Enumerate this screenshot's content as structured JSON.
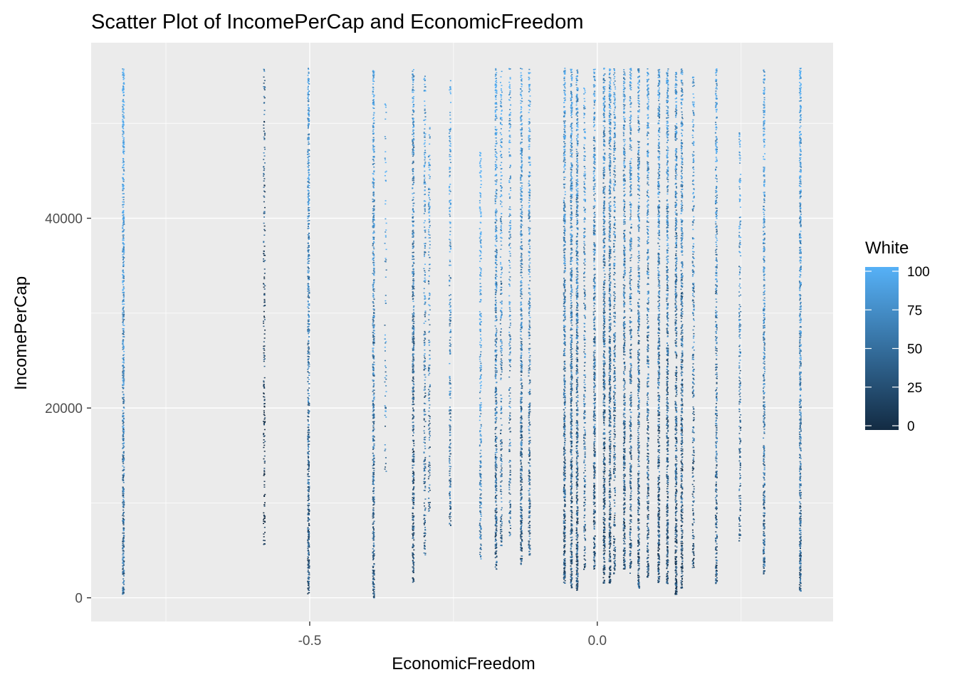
{
  "chart_data": {
    "type": "scatter",
    "title": "Scatter Plot of IncomePerCap and EconomicFreedom",
    "xlabel": "EconomicFreedom",
    "ylabel": "IncomePerCap",
    "xlim": [
      -0.88,
      0.41
    ],
    "ylim": [
      -2500,
      58500
    ],
    "x_ticks": [
      -0.5,
      0.0
    ],
    "x_tick_labels": [
      "-0.5",
      "0.0"
    ],
    "y_ticks": [
      0,
      20000,
      40000
    ],
    "y_tick_labels": [
      "0",
      "20000",
      "40000"
    ],
    "grid": true,
    "panel_background": "#EBEBEB",
    "legend": {
      "title": "White",
      "position": "right",
      "type": "colorbar",
      "range": [
        0,
        100
      ],
      "breaks": [
        0,
        25,
        50,
        75,
        100
      ],
      "break_labels": [
        "0",
        "25",
        "50",
        "75",
        "100"
      ],
      "low_color": "#132B43",
      "high_color": "#56B1F7"
    },
    "columns": [
      {
        "x": -0.824,
        "y_min": 300,
        "y_max": 55800,
        "density": 1.0,
        "white_mean": 72
      },
      {
        "x": -0.579,
        "y_min": 5500,
        "y_max": 55800,
        "density": 0.35,
        "white_mean": 18
      },
      {
        "x": -0.502,
        "y_min": 400,
        "y_max": 55800,
        "density": 1.0,
        "white_mean": 55
      },
      {
        "x": -0.389,
        "y_min": 0,
        "y_max": 55800,
        "density": 0.9,
        "white_mean": 62
      },
      {
        "x": -0.368,
        "y_min": 13000,
        "y_max": 54500,
        "density": 0.15,
        "white_mean": 80
      },
      {
        "x": -0.32,
        "y_min": 1500,
        "y_max": 55800,
        "density": 0.85,
        "white_mean": 50
      },
      {
        "x": -0.3,
        "y_min": 4500,
        "y_max": 55000,
        "density": 0.45,
        "white_mean": 62
      },
      {
        "x": -0.292,
        "y_min": 9000,
        "y_max": 50000,
        "density": 0.35,
        "white_mean": 68
      },
      {
        "x": -0.256,
        "y_min": 7500,
        "y_max": 55000,
        "density": 0.45,
        "white_mean": 72
      },
      {
        "x": -0.203,
        "y_min": 4000,
        "y_max": 47500,
        "density": 0.55,
        "white_mean": 86
      },
      {
        "x": -0.176,
        "y_min": 3000,
        "y_max": 55800,
        "density": 0.85,
        "white_mean": 66
      },
      {
        "x": -0.167,
        "y_min": 5500,
        "y_max": 55800,
        "density": 0.45,
        "white_mean": 68
      },
      {
        "x": -0.152,
        "y_min": 6500,
        "y_max": 55800,
        "density": 0.4,
        "white_mean": 70
      },
      {
        "x": -0.132,
        "y_min": 3500,
        "y_max": 55800,
        "density": 0.85,
        "white_mean": 62
      },
      {
        "x": -0.118,
        "y_min": 4500,
        "y_max": 55800,
        "density": 0.6,
        "white_mean": 66
      },
      {
        "x": -0.057,
        "y_min": 1500,
        "y_max": 55800,
        "density": 1.0,
        "white_mean": 58
      },
      {
        "x": -0.045,
        "y_min": 1000,
        "y_max": 55800,
        "density": 1.0,
        "white_mean": 56
      },
      {
        "x": -0.035,
        "y_min": 800,
        "y_max": 55800,
        "density": 1.0,
        "white_mean": 56
      },
      {
        "x": -0.022,
        "y_min": 3000,
        "y_max": 54000,
        "density": 0.5,
        "white_mean": 62
      },
      {
        "x": -0.005,
        "y_min": 3000,
        "y_max": 55800,
        "density": 0.85,
        "white_mean": 56
      },
      {
        "x": 0.012,
        "y_min": 1500,
        "y_max": 55800,
        "density": 1.0,
        "white_mean": 50
      },
      {
        "x": 0.022,
        "y_min": 1500,
        "y_max": 55800,
        "density": 1.0,
        "white_mean": 50
      },
      {
        "x": 0.03,
        "y_min": 2500,
        "y_max": 55800,
        "density": 0.6,
        "white_mean": 56
      },
      {
        "x": 0.047,
        "y_min": 3000,
        "y_max": 55800,
        "density": 0.85,
        "white_mean": 54
      },
      {
        "x": 0.058,
        "y_min": 2500,
        "y_max": 55800,
        "density": 0.7,
        "white_mean": 56
      },
      {
        "x": 0.072,
        "y_min": 1000,
        "y_max": 55800,
        "density": 0.8,
        "white_mean": 54
      },
      {
        "x": 0.088,
        "y_min": 2000,
        "y_max": 55800,
        "density": 0.7,
        "white_mean": 56
      },
      {
        "x": 0.107,
        "y_min": 1500,
        "y_max": 55800,
        "density": 0.95,
        "white_mean": 52
      },
      {
        "x": 0.122,
        "y_min": 1500,
        "y_max": 55800,
        "density": 0.9,
        "white_mean": 52
      },
      {
        "x": 0.137,
        "y_min": 300,
        "y_max": 55800,
        "density": 0.95,
        "white_mean": 50
      },
      {
        "x": 0.147,
        "y_min": 1000,
        "y_max": 55800,
        "density": 0.85,
        "white_mean": 50
      },
      {
        "x": 0.167,
        "y_min": 3000,
        "y_max": 55000,
        "density": 0.5,
        "white_mean": 56
      },
      {
        "x": 0.207,
        "y_min": 1500,
        "y_max": 55800,
        "density": 0.7,
        "white_mean": 58
      },
      {
        "x": 0.248,
        "y_min": 6000,
        "y_max": 49000,
        "density": 0.45,
        "white_mean": 62
      },
      {
        "x": 0.29,
        "y_min": 2500,
        "y_max": 55800,
        "density": 0.75,
        "white_mean": 68
      },
      {
        "x": 0.353,
        "y_min": 700,
        "y_max": 55800,
        "density": 0.95,
        "white_mean": 66
      }
    ]
  }
}
